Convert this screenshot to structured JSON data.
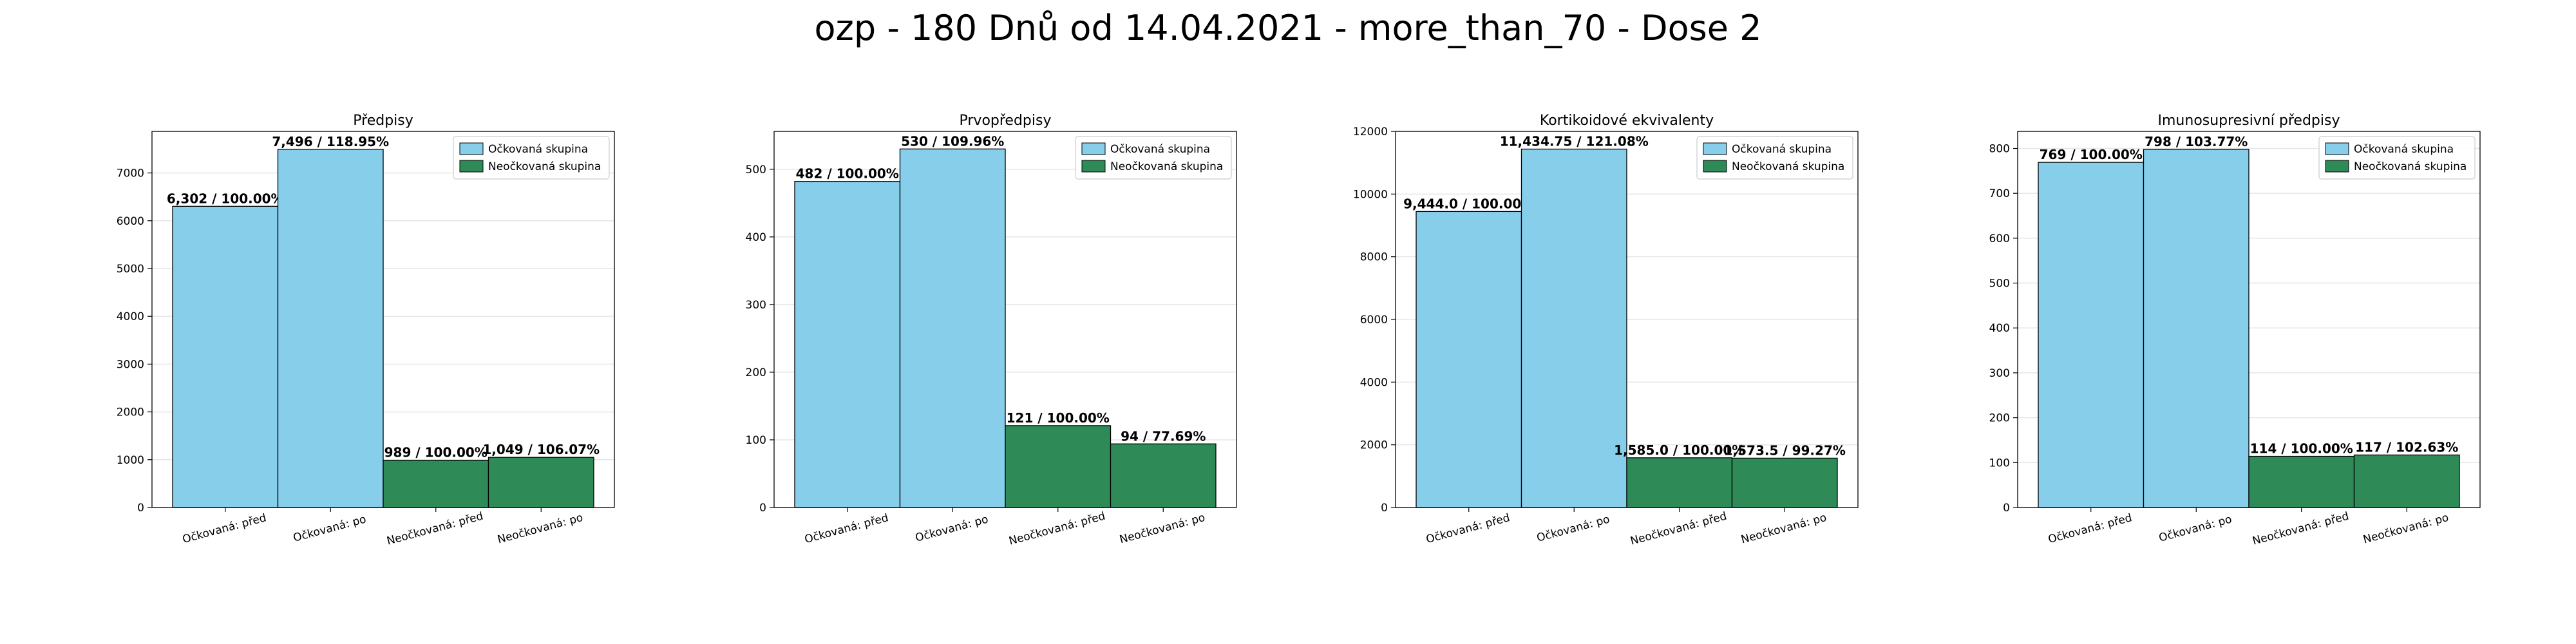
{
  "suptitle": "ozp - 180 Dnů od 14.04.2021 - more_than_70 - Dose 2",
  "colors": {
    "vaccinated": "#87CEEB",
    "unvaccinated": "#2E8B57",
    "edge": "#000000",
    "grid": "#e6e6e6"
  },
  "chart_data": [
    {
      "type": "bar",
      "title": "Předpisy",
      "categories": [
        "Očkovaná: před",
        "Očkovaná: po",
        "Neočkovaná: před",
        "Neočkovaná: po"
      ],
      "values": [
        6302,
        7496,
        989,
        1049
      ],
      "labels": [
        "6,302 / 100.00%",
        "7,496 / 118.95%",
        "989 / 100.00%",
        "1,049 / 106.07%"
      ],
      "groups": [
        "vaccinated",
        "vaccinated",
        "unvaccinated",
        "unvaccinated"
      ],
      "ylim": [
        0,
        7870
      ],
      "yticks": [
        0,
        1000,
        2000,
        3000,
        4000,
        5000,
        6000,
        7000
      ],
      "legend": [
        "Očkovaná skupina",
        "Neočkovaná skupina"
      ],
      "legend_position": "top-right",
      "grid": true
    },
    {
      "type": "bar",
      "title": "Prvopředpisy",
      "categories": [
        "Očkovaná: před",
        "Očkovaná: po",
        "Neočkovaná: před",
        "Neočkovaná: po"
      ],
      "values": [
        482,
        530,
        121,
        94
      ],
      "labels": [
        "482 / 100.00%",
        "530 / 109.96%",
        "121 / 100.00%",
        "94 / 77.69%"
      ],
      "groups": [
        "vaccinated",
        "vaccinated",
        "unvaccinated",
        "unvaccinated"
      ],
      "ylim": [
        0,
        556
      ],
      "yticks": [
        0,
        100,
        200,
        300,
        400,
        500
      ],
      "legend": [
        "Očkovaná skupina",
        "Neočkovaná skupina"
      ],
      "legend_position": "top-right",
      "grid": true
    },
    {
      "type": "bar",
      "title": "Kortikoidové ekvivalenty",
      "categories": [
        "Očkovaná: před",
        "Očkovaná: po",
        "Neočkovaná: před",
        "Neočkovaná: po"
      ],
      "values": [
        9444.0,
        11434.75,
        1585.0,
        1573.5
      ],
      "labels": [
        "9,444.0 / 100.00%",
        "11,434.75 / 121.08%",
        "1,585.0 / 100.00%",
        "1,573.5 / 99.27%"
      ],
      "groups": [
        "vaccinated",
        "vaccinated",
        "unvaccinated",
        "unvaccinated"
      ],
      "ylim": [
        0,
        12000
      ],
      "yticks": [
        0,
        2000,
        4000,
        6000,
        8000,
        10000,
        12000
      ],
      "legend": [
        "Očkovaná skupina",
        "Neočkovaná skupina"
      ],
      "legend_position": "top-right",
      "grid": true
    },
    {
      "type": "bar",
      "title": "Imunosupresivní předpisy",
      "categories": [
        "Očkovaná: před",
        "Očkovaná: po",
        "Neočkovaná: před",
        "Neočkovaná: po"
      ],
      "values": [
        769,
        798,
        114,
        117
      ],
      "labels": [
        "769 / 100.00%",
        "798 / 103.77%",
        "114 / 100.00%",
        "117 / 102.63%"
      ],
      "groups": [
        "vaccinated",
        "vaccinated",
        "unvaccinated",
        "unvaccinated"
      ],
      "ylim": [
        0,
        838
      ],
      "yticks": [
        0,
        100,
        200,
        300,
        400,
        500,
        600,
        700,
        800
      ],
      "legend": [
        "Očkovaná skupina",
        "Neočkovaná skupina"
      ],
      "legend_position": "top-right",
      "grid": true
    }
  ]
}
